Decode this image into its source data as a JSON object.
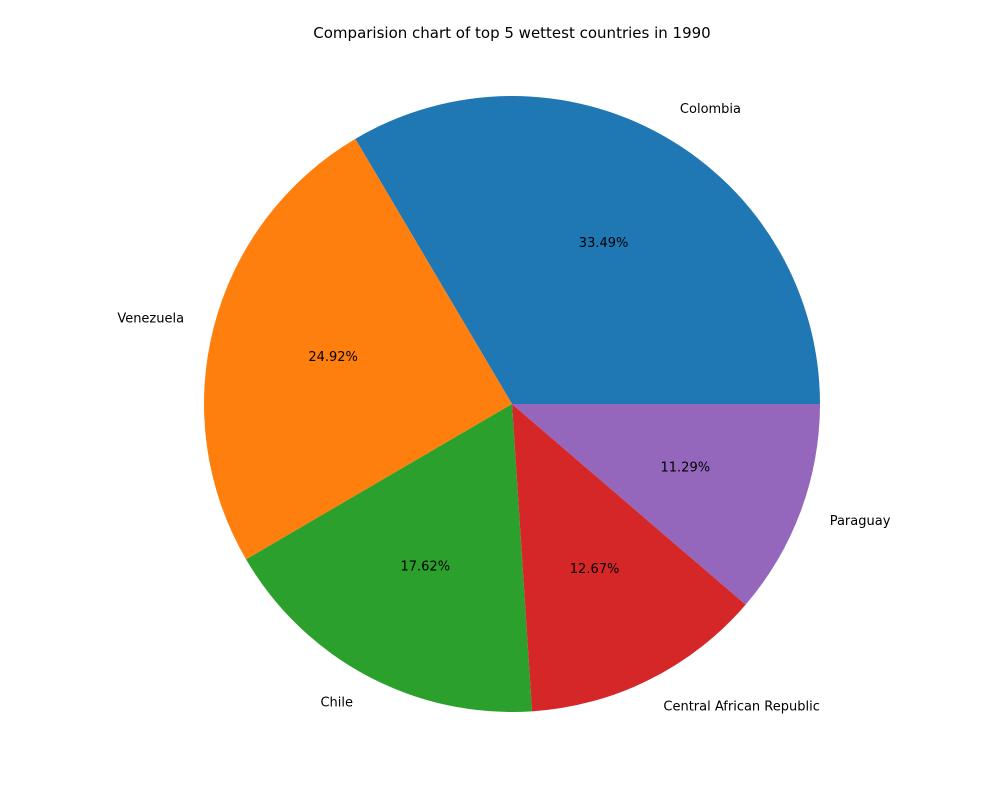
{
  "chart_data": {
    "type": "pie",
    "title": "Comparision chart of top 5 wettest countries in 1990",
    "categories": [
      "Colombia",
      "Venezuela",
      "Chile",
      "Central African Republic",
      "Paraguay"
    ],
    "values": [
      33.49,
      24.92,
      17.62,
      12.67,
      11.29
    ],
    "value_labels": [
      "33.49%",
      "24.92%",
      "17.62%",
      "12.67%",
      "11.29%"
    ],
    "colors": [
      "#1f77b4",
      "#ff7f0e",
      "#2ca02c",
      "#d62728",
      "#9467bd"
    ],
    "start_angle_deg": 0,
    "direction": "counterclockwise",
    "legend": "none"
  }
}
